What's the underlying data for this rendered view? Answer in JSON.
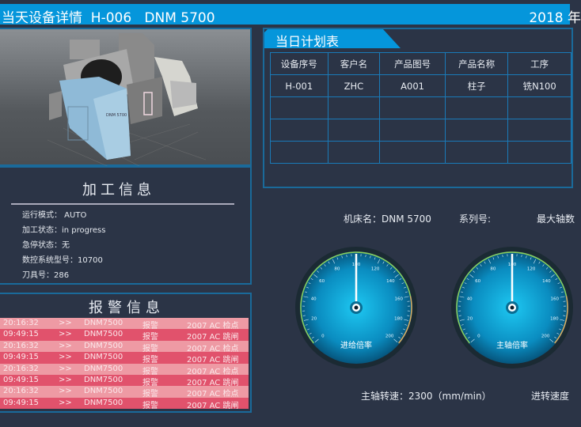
{
  "header": {
    "title": "当天设备详情  H-006   DNM 5700",
    "date": "2018 年"
  },
  "machine_image": {
    "label": "DNM 5700"
  },
  "info": {
    "title": "加工信息",
    "rows": [
      {
        "label": "运行模式：",
        "value": " AUTO"
      },
      {
        "label": "加工状态：",
        "value": "in progress"
      },
      {
        "label": "急停状态：",
        "value": "无"
      },
      {
        "label": "数控系统型号：",
        "value": "10700"
      },
      {
        "label": "刀具号：",
        "value": "286"
      }
    ]
  },
  "alarm": {
    "title": "报警信息",
    "rows": [
      {
        "time": "20:16:32",
        "arrow": ">>",
        "machine": "DNM7500",
        "type": "报警",
        "code": "2007  AC 检点"
      },
      {
        "time": "09:49:15",
        "arrow": ">>",
        "machine": "DNM7500",
        "type": "报警",
        "code": "2007  AC 跳闸"
      },
      {
        "time": "20:16:32",
        "arrow": ">>",
        "machine": "DNM7500",
        "type": "报警",
        "code": "2007  AC 检点"
      },
      {
        "time": "09:49:15",
        "arrow": ">>",
        "machine": "DNM7500",
        "type": "报警",
        "code": "2007  AC 跳闸"
      },
      {
        "time": "20:16:32",
        "arrow": ">>",
        "machine": "DNM7500",
        "type": "报警",
        "code": "2007  AC 检点"
      },
      {
        "time": "09:49:15",
        "arrow": ">>",
        "machine": "DNM7500",
        "type": "报警",
        "code": "2007  AC 跳闸"
      },
      {
        "time": "20:16:32",
        "arrow": ">>",
        "machine": "DNM7500",
        "type": "报警",
        "code": "2007  AC 检点"
      },
      {
        "time": "09:49:15",
        "arrow": ">>",
        "machine": "DNM7500",
        "type": "报警",
        "code": "2007  AC 跳闸"
      }
    ]
  },
  "plan": {
    "title": "当日计划表",
    "columns": [
      "设备序号",
      "客户名",
      "产品图号",
      "产品名称",
      "工序"
    ],
    "rows": [
      [
        "H-001",
        "ZHC",
        "A001",
        "柱子",
        "铣N100"
      ],
      [
        "",
        "",
        "",
        "",
        ""
      ],
      [
        "",
        "",
        "",
        "",
        ""
      ],
      [
        "",
        "",
        "",
        "",
        ""
      ]
    ]
  },
  "machine": {
    "name_label": "机床名：DNM 5700",
    "series_label": "系列号:",
    "max_label": "最大轴数",
    "spindle_speed": "主轴转速：2300（mm/min）",
    "feed_speed": "进转速度"
  },
  "gauges": [
    {
      "label": "进给倍率",
      "value": 100,
      "min": 0,
      "max": 200,
      "ticks": [
        "0",
        "20",
        "40",
        "60",
        "80",
        "100",
        "120",
        "140",
        "160",
        "180",
        "200"
      ]
    },
    {
      "label": "主轴倍率",
      "value": 100,
      "min": 0,
      "max": 200,
      "ticks": [
        "0",
        "20",
        "40",
        "60",
        "80",
        "100",
        "120",
        "140",
        "160",
        "180",
        "200"
      ]
    }
  ],
  "colors": {
    "accent": "#0596db",
    "background": "#2b3446",
    "alarm_light": "#ee9aa4",
    "alarm_dark": "#e1526c"
  }
}
